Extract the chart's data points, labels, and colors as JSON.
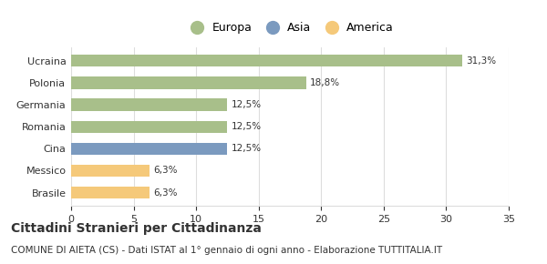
{
  "categories": [
    "Brasile",
    "Messico",
    "Cina",
    "Romania",
    "Germania",
    "Polonia",
    "Ucraina"
  ],
  "values": [
    6.3,
    6.3,
    12.5,
    12.5,
    12.5,
    18.8,
    31.3
  ],
  "bar_colors": [
    "#f5c97a",
    "#f5c97a",
    "#7b9abf",
    "#a8bf8a",
    "#a8bf8a",
    "#a8bf8a",
    "#a8bf8a"
  ],
  "labels": [
    "6,3%",
    "6,3%",
    "12,5%",
    "12,5%",
    "12,5%",
    "18,8%",
    "31,3%"
  ],
  "legend_labels": [
    "Europa",
    "Asia",
    "America"
  ],
  "legend_colors": [
    "#a8bf8a",
    "#7b9abf",
    "#f5c97a"
  ],
  "xlim": [
    0,
    35
  ],
  "xticks": [
    0,
    5,
    10,
    15,
    20,
    25,
    30,
    35
  ],
  "title": "Cittadini Stranieri per Cittadinanza",
  "subtitle": "COMUNE DI AIETA (CS) - Dati ISTAT al 1° gennaio di ogni anno - Elaborazione TUTTITALIA.IT",
  "title_fontsize": 10,
  "subtitle_fontsize": 7.5,
  "label_fontsize": 7.5,
  "tick_fontsize": 8,
  "legend_fontsize": 9,
  "bar_height": 0.55,
  "background_color": "#ffffff",
  "grid_color": "#dddddd",
  "text_color": "#333333"
}
